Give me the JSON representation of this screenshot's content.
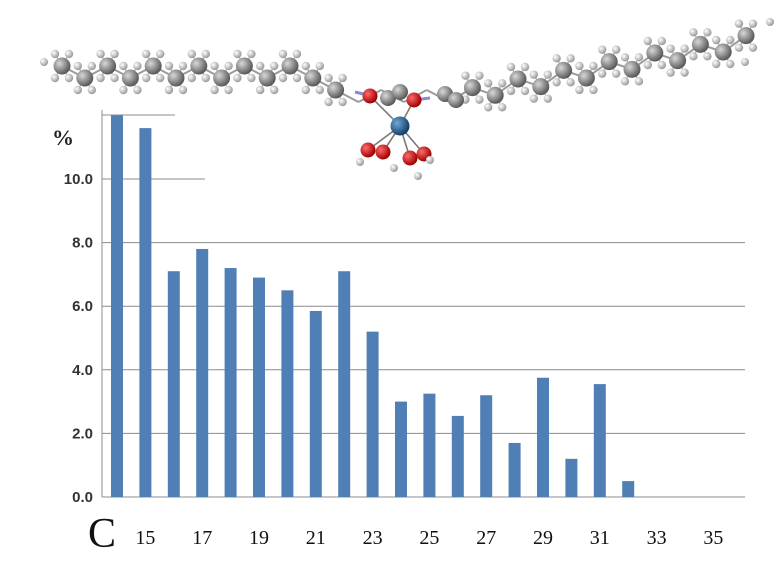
{
  "chart_data": {
    "type": "bar",
    "categories": [
      14,
      15,
      16,
      17,
      18,
      19,
      20,
      21,
      22,
      23,
      24,
      25,
      26,
      27,
      28,
      29,
      30,
      31,
      32,
      33,
      34,
      35,
      36
    ],
    "values": [
      12.0,
      11.6,
      7.1,
      7.8,
      7.2,
      6.9,
      6.5,
      5.85,
      7.1,
      5.2,
      3.0,
      3.25,
      2.55,
      3.2,
      1.7,
      3.75,
      1.2,
      3.55,
      0.5,
      0,
      0,
      0,
      0
    ],
    "x_tick_labels": [
      "15",
      "17",
      "19",
      "21",
      "23",
      "25",
      "27",
      "29",
      "31",
      "33",
      "35"
    ],
    "y_tick_labels": [
      "0.0",
      "2.0",
      "4.0",
      "6.0",
      "8.0",
      "10.0"
    ],
    "ylabel": "%",
    "xlabel": "C",
    "ylim": [
      0,
      12.0
    ],
    "grid": true,
    "bar_color": "#4f7fb5",
    "molecule_illustration": "long-chain-molecule-with-central-metal-complex"
  }
}
